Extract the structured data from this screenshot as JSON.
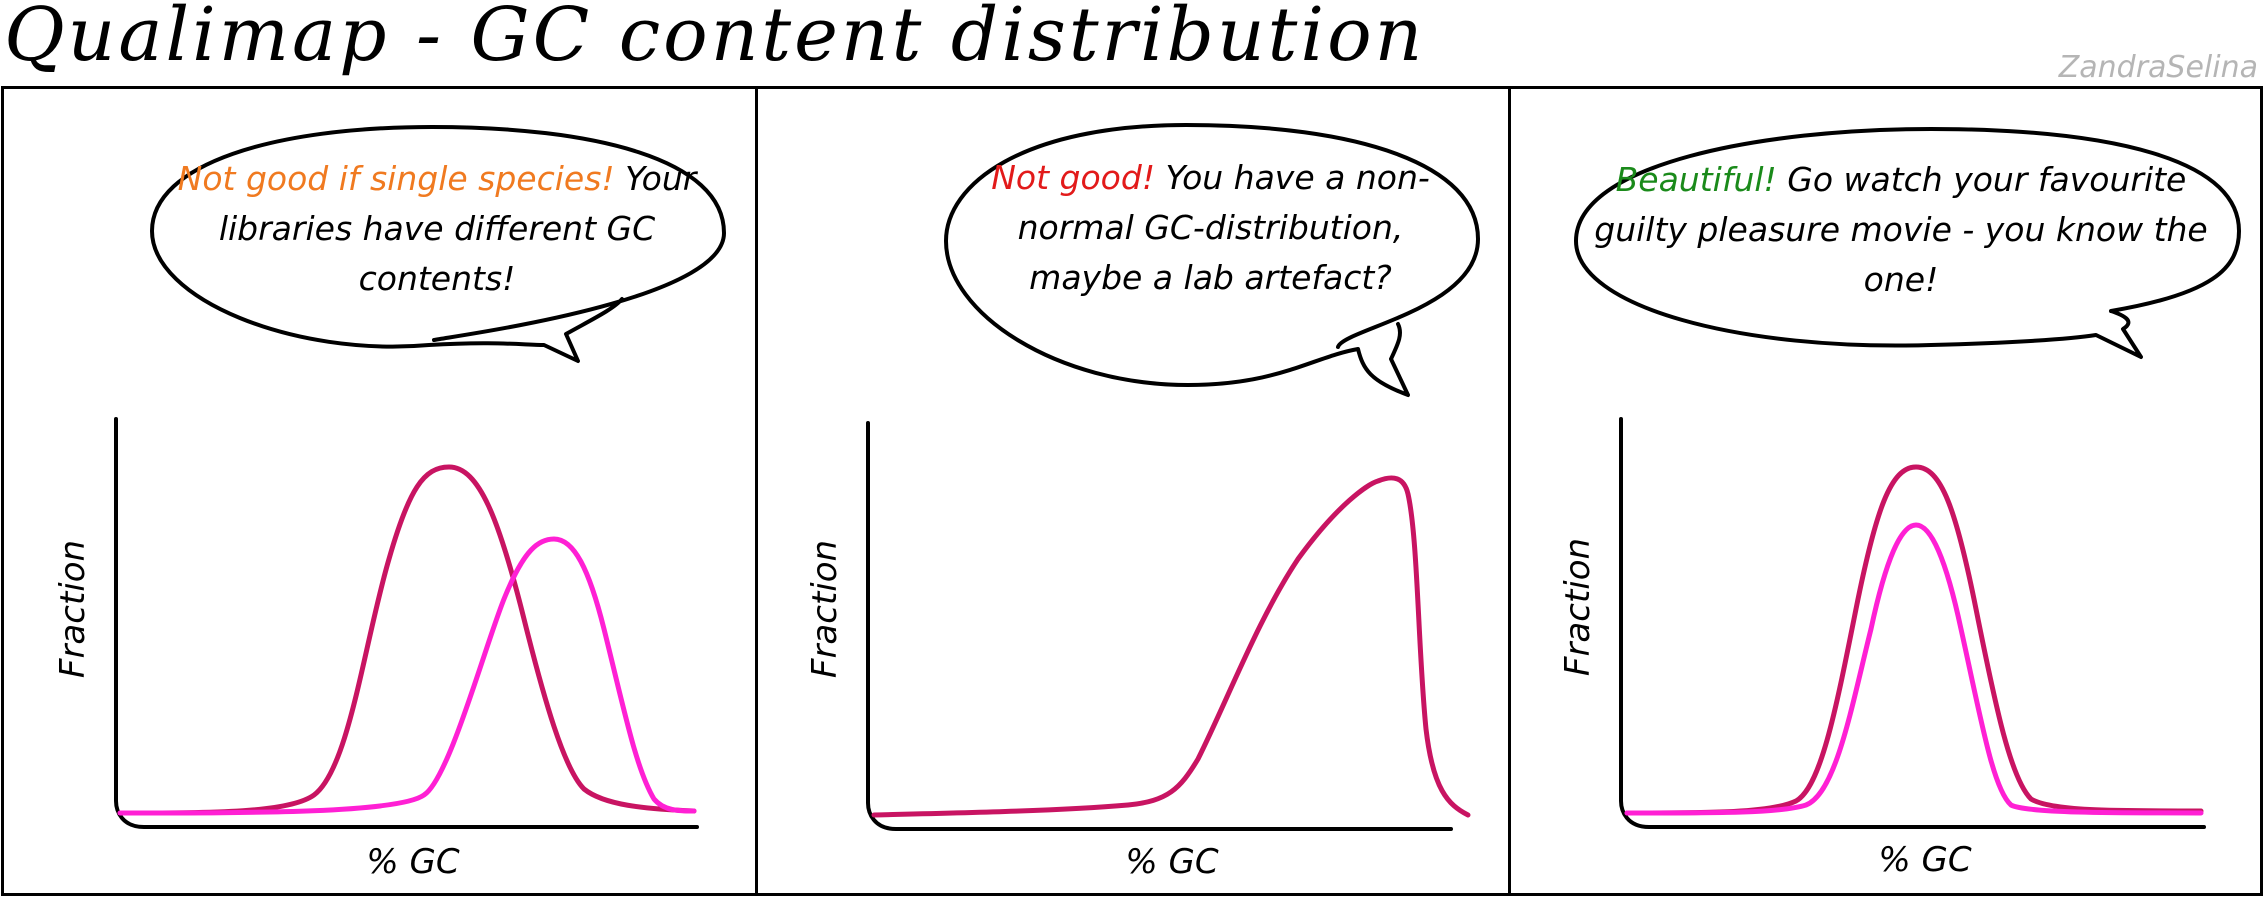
{
  "title": "Qualimap - GC content distribution",
  "signature": "ZandraSelina",
  "colors": {
    "orange": "#f07a20",
    "red": "#e21a1a",
    "green": "#1a8a1a",
    "curve_dark": "#c81462",
    "curve_light": "#ff20d4"
  },
  "panels": [
    {
      "speech": [
        {
          "text": "Not good if single species!",
          "color": "#f07a20"
        },
        {
          "text": " Your libraries have different GC contents!",
          "color": "#000000"
        }
      ],
      "xlabel": "% GC",
      "ylabel": "Fraction"
    },
    {
      "speech": [
        {
          "text": "Not good!",
          "color": "#e21a1a"
        },
        {
          "text": " You have a non-normal GC-distribution, maybe a lab artefact?",
          "color": "#000000"
        }
      ],
      "xlabel": "% GC",
      "ylabel": "Fraction"
    },
    {
      "speech": [
        {
          "text": "Beautiful!",
          "color": "#1a8a1a"
        },
        {
          "text": " Go watch your favourite guilty pleasure movie - you know the one!",
          "color": "#000000"
        }
      ],
      "xlabel": "% GC",
      "ylabel": "Fraction"
    }
  ]
}
